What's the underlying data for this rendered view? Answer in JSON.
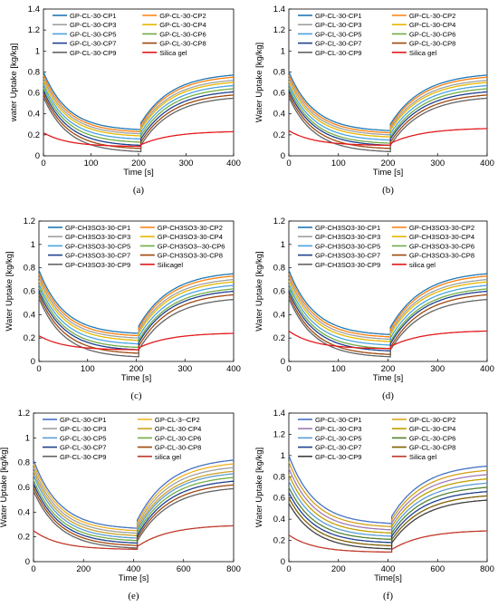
{
  "chart_data": [
    {
      "type": "line",
      "caption": "(a)",
      "xlabel": "Time [s]",
      "ylabel": "water Uptake [kg/kg]",
      "xlim": [
        0,
        400
      ],
      "ylim": [
        0,
        1.4
      ],
      "xticks": [
        0,
        100,
        200,
        300,
        400
      ],
      "yticks": [
        0,
        0.2,
        0.4,
        0.6,
        0.8,
        1,
        1.2,
        1.4
      ],
      "xtick_labels": [
        "0",
        "100",
        "200",
        "300",
        "400"
      ],
      "ytick_labels": [
        "0",
        "0.2",
        "0.4",
        "0.6",
        "0.8",
        "1",
        "1.2",
        "1.4"
      ],
      "switch_x": 205,
      "series": [
        {
          "name": "GP-CL-30-CP1",
          "color": "#1f77b4",
          "y_start": 0.8,
          "y_min": 0.25,
          "y_end": 0.77
        },
        {
          "name": "GP-CL-30-CP2",
          "color": "#ff7f0e",
          "y_start": 0.77,
          "y_min": 0.23,
          "y_end": 0.75
        },
        {
          "name": "GP-CL-30-CP3",
          "color": "#a0a0a0",
          "y_start": 0.74,
          "y_min": 0.21,
          "y_end": 0.72
        },
        {
          "name": "GP-CL-30-CP4",
          "color": "#e6b800",
          "y_start": 0.71,
          "y_min": 0.19,
          "y_end": 0.7
        },
        {
          "name": "GP-CL-30-CP5",
          "color": "#4aa3df",
          "y_start": 0.68,
          "y_min": 0.16,
          "y_end": 0.67
        },
        {
          "name": "GP-CL-30-CP6",
          "color": "#70ad47",
          "y_start": 0.65,
          "y_min": 0.13,
          "y_end": 0.64
        },
        {
          "name": "GP-CL-30-CP7",
          "color": "#1f3f8f",
          "y_start": 0.62,
          "y_min": 0.1,
          "y_end": 0.61
        },
        {
          "name": "GP-CL-30-CP8",
          "color": "#9e480e",
          "y_start": 0.59,
          "y_min": 0.07,
          "y_end": 0.58
        },
        {
          "name": "GP-CL-30-CP9",
          "color": "#636363",
          "y_start": 0.56,
          "y_min": 0.04,
          "y_end": 0.55
        },
        {
          "name": "Silica gel",
          "color": "#e31a1c",
          "y_start": 0.22,
          "y_min": 0.09,
          "y_end": 0.23
        }
      ]
    },
    {
      "type": "line",
      "caption": "(b)",
      "xlabel": "Time [s]",
      "ylabel": "Water Uptake [kg/kg]",
      "xlim": [
        0,
        400
      ],
      "ylim": [
        0,
        1.4
      ],
      "xticks": [
        0,
        100,
        200,
        300,
        400
      ],
      "yticks": [
        0,
        0.2,
        0.4,
        0.6,
        0.8,
        1,
        1.2,
        1.4
      ],
      "xtick_labels": [
        "0",
        "100",
        "200",
        "300",
        "400"
      ],
      "ytick_labels": [
        "0",
        "0.2",
        "0.4",
        "0.6",
        "0.8",
        "1",
        "1.2",
        "1.4"
      ],
      "switch_x": 205,
      "series": [
        {
          "name": "GP-CL-30-CP1",
          "color": "#1f77b4",
          "y_start": 0.8,
          "y_min": 0.24,
          "y_end": 0.77
        },
        {
          "name": "GP-CL-30-CP2",
          "color": "#ff7f0e",
          "y_start": 0.77,
          "y_min": 0.22,
          "y_end": 0.75
        },
        {
          "name": "GP-CL-30-CP3",
          "color": "#a0a0a0",
          "y_start": 0.74,
          "y_min": 0.2,
          "y_end": 0.72
        },
        {
          "name": "GP-CL-30-CP4",
          "color": "#e6b800",
          "y_start": 0.71,
          "y_min": 0.18,
          "y_end": 0.7
        },
        {
          "name": "GP-CL-30-CP5",
          "color": "#4aa3df",
          "y_start": 0.68,
          "y_min": 0.15,
          "y_end": 0.67
        },
        {
          "name": "GP-CL-30-CP6",
          "color": "#70ad47",
          "y_start": 0.65,
          "y_min": 0.12,
          "y_end": 0.64
        },
        {
          "name": "GP-CL-30-CP7",
          "color": "#1f3f8f",
          "y_start": 0.62,
          "y_min": 0.1,
          "y_end": 0.61
        },
        {
          "name": "GP-CL-30-CP8",
          "color": "#9e480e",
          "y_start": 0.59,
          "y_min": 0.07,
          "y_end": 0.58
        },
        {
          "name": "GP-CL-30-CP9",
          "color": "#636363",
          "y_start": 0.56,
          "y_min": 0.04,
          "y_end": 0.55
        },
        {
          "name": "Silica gel",
          "color": "#e31a1c",
          "y_start": 0.24,
          "y_min": 0.1,
          "y_end": 0.26
        }
      ]
    },
    {
      "type": "line",
      "caption": "(c)",
      "xlabel": "Time [s]",
      "ylabel": "Water Uptake [kg/kg]",
      "xlim": [
        0,
        400
      ],
      "ylim": [
        0,
        1.2
      ],
      "xticks": [
        0,
        100,
        200,
        300,
        400
      ],
      "yticks": [
        0,
        0.2,
        0.4,
        0.6,
        0.8,
        1,
        1.2
      ],
      "xtick_labels": [
        "0",
        "100",
        "200",
        "300",
        "400"
      ],
      "ytick_labels": [
        "0",
        "0.2",
        "0.4",
        "0.6",
        "0.8",
        "1",
        "1.2"
      ],
      "switch_x": 205,
      "series": [
        {
          "name": "GP-CH3SO3-30-CP1",
          "color": "#1f77b4",
          "y_start": 0.78,
          "y_min": 0.24,
          "y_end": 0.75
        },
        {
          "name": "GP-CH3SO3-30-CP2",
          "color": "#ff7f0e",
          "y_start": 0.75,
          "y_min": 0.22,
          "y_end": 0.73
        },
        {
          "name": "GP-CH3SO3-30-CP3",
          "color": "#a0a0a0",
          "y_start": 0.72,
          "y_min": 0.2,
          "y_end": 0.7
        },
        {
          "name": "GP-CH3SO3-30-CP4",
          "color": "#e6b800",
          "y_start": 0.69,
          "y_min": 0.18,
          "y_end": 0.68
        },
        {
          "name": "GP-CH3SO3-30-CP5",
          "color": "#4aa3df",
          "y_start": 0.66,
          "y_min": 0.15,
          "y_end": 0.65
        },
        {
          "name": "GP-CH3SO3--30-CP6",
          "color": "#70ad47",
          "y_start": 0.63,
          "y_min": 0.12,
          "y_end": 0.62
        },
        {
          "name": "GP-CH3SO3-30-CP7",
          "color": "#1f3f8f",
          "y_start": 0.6,
          "y_min": 0.1,
          "y_end": 0.6
        },
        {
          "name": "GP-CH3SO3-30-CP8",
          "color": "#9e480e",
          "y_start": 0.57,
          "y_min": 0.07,
          "y_end": 0.57
        },
        {
          "name": "GP-CH3SO3-30-CP9",
          "color": "#636363",
          "y_start": 0.54,
          "y_min": 0.04,
          "y_end": 0.53
        },
        {
          "name": "Silicagel",
          "color": "#e31a1c",
          "y_start": 0.22,
          "y_min": 0.1,
          "y_end": 0.24
        }
      ]
    },
    {
      "type": "line",
      "caption": "(d)",
      "xlabel": "Time [s]",
      "ylabel": "Water Uptake [kg/kg]",
      "xlim": [
        0,
        400
      ],
      "ylim": [
        0,
        1.2
      ],
      "xticks": [
        0,
        100,
        200,
        300,
        400
      ],
      "yticks": [
        0,
        0.2,
        0.4,
        0.6,
        0.8,
        1,
        1.2
      ],
      "xtick_labels": [
        "0",
        "100",
        "200",
        "300",
        "400"
      ],
      "ytick_labels": [
        "0",
        "0.2",
        "0.4",
        "0.6",
        "0.8",
        "1",
        "1.2"
      ],
      "switch_x": 205,
      "series": [
        {
          "name": "GP-CH3SO3-30-CP1",
          "color": "#1f77b4",
          "y_start": 0.78,
          "y_min": 0.23,
          "y_end": 0.75
        },
        {
          "name": "GP-CH3SO3-30-CP2",
          "color": "#ff7f0e",
          "y_start": 0.75,
          "y_min": 0.21,
          "y_end": 0.73
        },
        {
          "name": "GP-CH3SO3-30-CP3",
          "color": "#a0a0a0",
          "y_start": 0.72,
          "y_min": 0.19,
          "y_end": 0.7
        },
        {
          "name": "GP-CH3SO3-30-CP4",
          "color": "#e6b800",
          "y_start": 0.69,
          "y_min": 0.17,
          "y_end": 0.68
        },
        {
          "name": "GP-CH3SO3-30-CP5",
          "color": "#4aa3df",
          "y_start": 0.66,
          "y_min": 0.14,
          "y_end": 0.65
        },
        {
          "name": "GP-CH3SO3-30-CP6",
          "color": "#70ad47",
          "y_start": 0.63,
          "y_min": 0.11,
          "y_end": 0.62
        },
        {
          "name": "GP-CH3SO3-30-CP7",
          "color": "#1f3f8f",
          "y_start": 0.6,
          "y_min": 0.09,
          "y_end": 0.6
        },
        {
          "name": "GP-CH3SO3-30-CP8",
          "color": "#9e480e",
          "y_start": 0.57,
          "y_min": 0.06,
          "y_end": 0.57
        },
        {
          "name": "GP-CH3SO3-30-CP9",
          "color": "#636363",
          "y_start": 0.54,
          "y_min": 0.04,
          "y_end": 0.53
        },
        {
          "name": "silica gel",
          "color": "#e31a1c",
          "y_start": 0.26,
          "y_min": 0.11,
          "y_end": 0.26
        }
      ]
    },
    {
      "type": "line",
      "caption": "(e)",
      "xlabel": "Time [s]",
      "ylabel": "Water Uptake [kg/kg]",
      "xlim": [
        0,
        800
      ],
      "ylim": [
        0,
        1.2
      ],
      "xticks": [
        0,
        200,
        400,
        600,
        800
      ],
      "yticks": [
        0,
        0.2,
        0.4,
        0.6,
        0.8,
        1,
        1.2
      ],
      "xtick_labels": [
        "0",
        "200",
        "400",
        "600",
        "800"
      ],
      "ytick_labels": [
        "0",
        "0.2",
        "0.4",
        "0.6",
        "0.8",
        "1",
        "1.2"
      ],
      "switch_x": 415,
      "series": [
        {
          "name": "GP-CL-30-CP1",
          "color": "#4472c4",
          "y_start": 0.82,
          "y_min": 0.27,
          "y_end": 0.82
        },
        {
          "name": "GP-CL-3--CP2",
          "color": "#f0b020",
          "y_start": 0.79,
          "y_min": 0.25,
          "y_end": 0.79
        },
        {
          "name": "GP-CL-30-CP3",
          "color": "#a0a0a0",
          "y_start": 0.76,
          "y_min": 0.23,
          "y_end": 0.76
        },
        {
          "name": "GP-CL-30-CP4",
          "color": "#c9a227",
          "y_start": 0.73,
          "y_min": 0.21,
          "y_end": 0.73
        },
        {
          "name": "GP-CL-30-CP5",
          "color": "#5b9bd5",
          "y_start": 0.7,
          "y_min": 0.19,
          "y_end": 0.71
        },
        {
          "name": "GP-CL-30-CP6",
          "color": "#70ad47",
          "y_start": 0.66,
          "y_min": 0.17,
          "y_end": 0.68
        },
        {
          "name": "GP-CL-30-CP7",
          "color": "#1f3f8f",
          "y_start": 0.63,
          "y_min": 0.15,
          "y_end": 0.65
        },
        {
          "name": "GP-CL-30-CP8",
          "color": "#9e480e",
          "y_start": 0.6,
          "y_min": 0.13,
          "y_end": 0.62
        },
        {
          "name": "GP-CL-30-CP9",
          "color": "#636363",
          "y_start": 0.57,
          "y_min": 0.11,
          "y_end": 0.59
        },
        {
          "name": "silica gel",
          "color": "#c0392b",
          "y_start": 0.25,
          "y_min": 0.1,
          "y_end": 0.29
        }
      ]
    },
    {
      "type": "line",
      "caption": "(f)",
      "xlabel": "Time[s]",
      "ylabel": "Water Uptake [kg/kg]",
      "xlim": [
        0,
        800
      ],
      "ylim": [
        0,
        1.4
      ],
      "xticks": [
        0,
        200,
        400,
        600,
        800
      ],
      "yticks": [
        0,
        0.2,
        0.4,
        0.6,
        0.8,
        1,
        1.2,
        1.4
      ],
      "xtick_labels": [
        "0",
        "200",
        "400",
        "600",
        "800"
      ],
      "ytick_labels": [
        "0",
        "0.2",
        "0.4",
        "0.6",
        "0.8",
        "1",
        "1.2",
        "1.4"
      ],
      "switch_x": 415,
      "series": [
        {
          "name": "GP-CL-30-CP1",
          "color": "#4472c4",
          "y_start": 1.0,
          "y_min": 0.36,
          "y_end": 0.9
        },
        {
          "name": "GP-CL-30-CP2",
          "color": "#d4a017",
          "y_start": 0.94,
          "y_min": 0.33,
          "y_end": 0.86
        },
        {
          "name": "GP-CL-30-CP3",
          "color": "#9e7bb5",
          "y_start": 0.88,
          "y_min": 0.3,
          "y_end": 0.82
        },
        {
          "name": "GP-CL-30-CP4",
          "color": "#bfa000",
          "y_start": 0.82,
          "y_min": 0.27,
          "y_end": 0.78
        },
        {
          "name": "GP-CL-30-CP5",
          "color": "#5b9bd5",
          "y_start": 0.76,
          "y_min": 0.24,
          "y_end": 0.74
        },
        {
          "name": "GP-CL-30-CP6",
          "color": "#548235",
          "y_start": 0.7,
          "y_min": 0.21,
          "y_end": 0.7
        },
        {
          "name": "GP-CL-30-CP7",
          "color": "#1f3f8f",
          "y_start": 0.65,
          "y_min": 0.18,
          "y_end": 0.66
        },
        {
          "name": "GP-CL-30-CP8",
          "color": "#7f6000",
          "y_start": 0.6,
          "y_min": 0.15,
          "y_end": 0.62
        },
        {
          "name": "GP-CL-30-CP9",
          "color": "#404040",
          "y_start": 0.55,
          "y_min": 0.12,
          "y_end": 0.58
        },
        {
          "name": "Silica gel",
          "color": "#c0392b",
          "y_start": 0.25,
          "y_min": 0.09,
          "y_end": 0.29
        }
      ]
    }
  ]
}
